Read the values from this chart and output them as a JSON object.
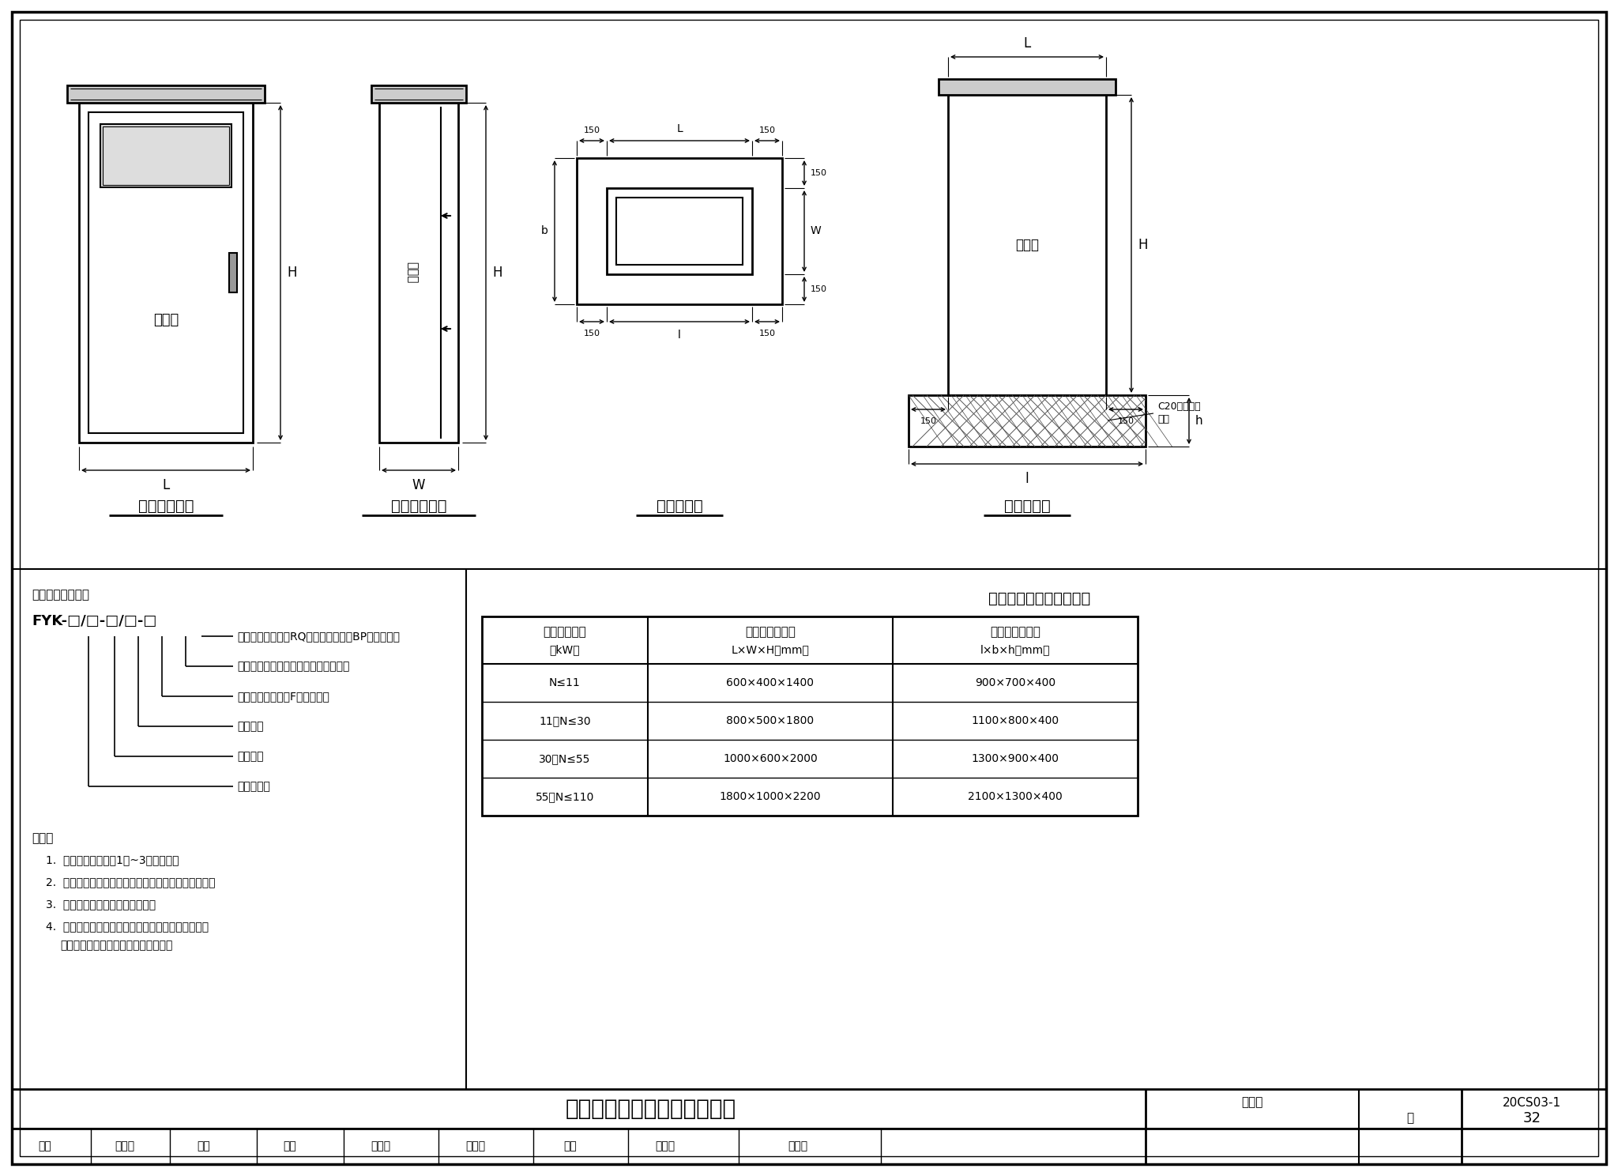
{
  "bg_color": "#ffffff",
  "line_color": "#000000",
  "title": "泵站控制柜外形尺寸及基础图",
  "fig_number": "20CS03-1",
  "page": "32",
  "table_title": "控制柜外形及基础尺寸表",
  "table_headers": [
    "单泵电机功率\n（kW）",
    "控制柜外形尺寸\nL×W×H（mm）",
    "混凝土基础尺寸\nl×b×h（mm）"
  ],
  "table_rows": [
    [
      "N≤11",
      "600×400×1400",
      "900×700×400"
    ],
    [
      "11＜N≤30",
      "800×500×1800",
      "1100×800×400"
    ],
    [
      "30＜N≤55",
      "1000×600×2000",
      "1300×900×400"
    ],
    [
      "55＜N≤110",
      "1800×1000×2200",
      "2100×1300×400"
    ]
  ],
  "view_labels": [
    "控制柜主视图",
    "控制柜侧视图",
    "基础平面图",
    "基础立面图"
  ],
  "type_label": "控制柜型号标记：",
  "type_code": "FYK-□/□-□/□-□",
  "type_descriptions": [
    "不标：直接启动；RQ：电子软启动；BP：变频启动",
    "不标：提篮格栅；数字：粉碎格栅功率",
    "不标：提篮格栅；F：粉碎格栅",
    "水泵功率",
    "水泵数量",
    "菲源控制柜"
  ],
  "notes_title": "说明：",
  "notes": [
    "每个控制柜能控制1台~3台潜污泵。",
    "控制柜基础应在泵站筒体回填夯实完成后进行施工。",
    "基础采用回字型中间镂空设计。",
    "在浇筑基础混凝土前，应预埋好从泵站筒体出来的潜污泵动力线与控制电缆线的钢套管。"
  ],
  "sig_items": [
    "审核",
    "宁君军",
    "编制",
    "校对",
    "邢堂堂",
    "印菊清",
    "设计",
    "张全明",
    "汪合明"
  ]
}
